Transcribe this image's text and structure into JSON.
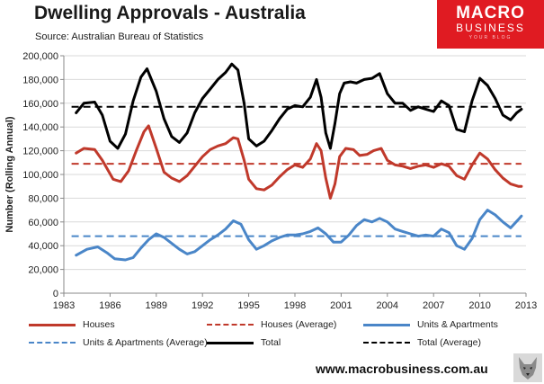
{
  "header": {
    "title": "Dwelling Approvals - Australia",
    "source": "Source: Australian Bureau of Statistics"
  },
  "logo": {
    "line1": "MACRO",
    "line2": "BUSINESS",
    "line3": "YOUR BLOG"
  },
  "footer": {
    "website": "www.macrobusiness.com.au"
  },
  "chart_data": {
    "type": "line",
    "ylabel": "Number (Rolling Annual)",
    "xlim": [
      1983,
      2013
    ],
    "ylim": [
      0,
      200000
    ],
    "x_ticks": [
      1983,
      1986,
      1989,
      1992,
      1995,
      1998,
      2001,
      2004,
      2007,
      2010,
      2013
    ],
    "y_ticks": [
      0,
      20000,
      40000,
      60000,
      80000,
      100000,
      120000,
      140000,
      160000,
      180000,
      200000
    ],
    "y_tick_labels": [
      "0",
      "20,000",
      "40,000",
      "60,000",
      "80,000",
      "100,000",
      "120,000",
      "140,000",
      "160,000",
      "180,000",
      "200,000"
    ],
    "grid": "horizontal",
    "legend_position": "bottom",
    "series": [
      {
        "name": "Houses",
        "color": "#c0392b",
        "style": "solid",
        "x": [
          1983.8,
          1984.3,
          1985.0,
          1985.5,
          1986.2,
          1986.7,
          1987.2,
          1987.7,
          1988.2,
          1988.5,
          1989.0,
          1989.5,
          1990.0,
          1990.5,
          1991.0,
          1991.5,
          1992.0,
          1992.5,
          1993.0,
          1993.5,
          1994.0,
          1994.3,
          1994.7,
          1995.0,
          1995.5,
          1996.0,
          1996.5,
          1997.0,
          1997.5,
          1998.0,
          1998.5,
          1999.0,
          1999.4,
          1999.7,
          2000.0,
          2000.3,
          2000.6,
          2000.9,
          2001.3,
          2001.8,
          2002.2,
          2002.7,
          2003.1,
          2003.6,
          2004.0,
          2004.5,
          2005.0,
          2005.5,
          2006.0,
          2006.5,
          2007.0,
          2007.5,
          2008.0,
          2008.5,
          2009.0,
          2009.5,
          2010.0,
          2010.5,
          2011.0,
          2011.5,
          2012.0,
          2012.5,
          2012.7
        ],
        "y": [
          118000,
          122000,
          121000,
          112000,
          96000,
          94000,
          103000,
          120000,
          136000,
          141000,
          122000,
          102000,
          97000,
          94000,
          99000,
          107000,
          115000,
          121000,
          124000,
          126000,
          131000,
          130000,
          112000,
          96000,
          88000,
          87000,
          91000,
          98000,
          104000,
          108000,
          106000,
          113000,
          126000,
          120000,
          97000,
          80000,
          92000,
          115000,
          122000,
          121000,
          116000,
          117000,
          120000,
          122000,
          112000,
          108000,
          107000,
          105000,
          107000,
          108000,
          106000,
          109000,
          107000,
          99000,
          96000,
          108000,
          118000,
          113000,
          104000,
          97000,
          92000,
          90000,
          90000
        ]
      },
      {
        "name": "Houses (Average)",
        "color": "#c0392b",
        "style": "dashed",
        "x": [
          1983.5,
          2012.7
        ],
        "y": [
          109000,
          109000
        ]
      },
      {
        "name": "Units & Apartments",
        "color": "#4a86c8",
        "style": "solid",
        "x": [
          1983.8,
          1984.5,
          1985.2,
          1985.8,
          1986.3,
          1987.0,
          1987.5,
          1988.0,
          1988.5,
          1989.0,
          1989.5,
          1990.0,
          1990.5,
          1991.0,
          1991.5,
          1992.0,
          1992.5,
          1993.0,
          1993.5,
          1994.0,
          1994.5,
          1995.0,
          1995.5,
          1996.0,
          1996.5,
          1997.0,
          1997.5,
          1998.0,
          1998.5,
          1999.0,
          1999.5,
          2000.0,
          2000.5,
          2001.0,
          2001.5,
          2002.0,
          2002.5,
          2003.0,
          2003.5,
          2004.0,
          2004.5,
          2005.0,
          2005.5,
          2006.0,
          2006.5,
          2007.0,
          2007.5,
          2008.0,
          2008.5,
          2009.0,
          2009.5,
          2010.0,
          2010.5,
          2011.0,
          2011.5,
          2012.0,
          2012.5,
          2012.7
        ],
        "y": [
          32000,
          37000,
          39000,
          34000,
          29000,
          28000,
          30000,
          38000,
          45000,
          50000,
          47000,
          42000,
          37000,
          33000,
          35000,
          40000,
          45000,
          49000,
          54000,
          61000,
          58000,
          45000,
          37000,
          40000,
          44000,
          47000,
          49000,
          49000,
          50000,
          52000,
          55000,
          50000,
          43000,
          43000,
          49000,
          57000,
          62000,
          60000,
          63000,
          60000,
          54000,
          52000,
          50000,
          48000,
          49000,
          48000,
          54000,
          51000,
          40000,
          37000,
          46000,
          62000,
          70000,
          66000,
          60000,
          55000,
          62000,
          65000
        ]
      },
      {
        "name": "Units & Apartments (Average)",
        "color": "#4a86c8",
        "style": "dashed",
        "x": [
          1983.5,
          2012.7
        ],
        "y": [
          48000,
          48000
        ]
      },
      {
        "name": "Total",
        "color": "#000000",
        "style": "solid",
        "x": [
          1983.8,
          1984.3,
          1985.0,
          1985.5,
          1986.0,
          1986.5,
          1987.0,
          1987.5,
          1988.0,
          1988.4,
          1989.0,
          1989.5,
          1990.0,
          1990.5,
          1991.0,
          1991.5,
          1992.0,
          1992.5,
          1993.0,
          1993.5,
          1993.9,
          1994.3,
          1994.7,
          1995.0,
          1995.5,
          1996.0,
          1996.5,
          1997.0,
          1997.5,
          1998.0,
          1998.5,
          1999.0,
          1999.4,
          1999.7,
          2000.0,
          2000.3,
          2000.6,
          2000.9,
          2001.2,
          2001.6,
          2002.0,
          2002.5,
          2003.0,
          2003.5,
          2004.0,
          2004.5,
          2005.0,
          2005.5,
          2006.0,
          2006.5,
          2007.0,
          2007.5,
          2008.0,
          2008.5,
          2009.0,
          2009.5,
          2010.0,
          2010.5,
          2011.0,
          2011.5,
          2012.0,
          2012.4,
          2012.7
        ],
        "y": [
          152000,
          160000,
          161000,
          150000,
          128000,
          122000,
          134000,
          162000,
          182000,
          189000,
          170000,
          147000,
          132000,
          127000,
          135000,
          152000,
          164000,
          172000,
          180000,
          186000,
          193000,
          188000,
          160000,
          130000,
          124000,
          128000,
          137000,
          147000,
          155000,
          158000,
          157000,
          165000,
          180000,
          165000,
          135000,
          122000,
          143000,
          168000,
          177000,
          178000,
          177000,
          180000,
          181000,
          185000,
          168000,
          160000,
          160000,
          154000,
          157000,
          155000,
          153000,
          162000,
          158000,
          138000,
          136000,
          162000,
          181000,
          175000,
          164000,
          150000,
          146000,
          152000,
          155000
        ]
      },
      {
        "name": "Total (Average)",
        "color": "#000000",
        "style": "dashed",
        "x": [
          1983.5,
          2012.7
        ],
        "y": [
          157000,
          157000
        ]
      }
    ]
  }
}
